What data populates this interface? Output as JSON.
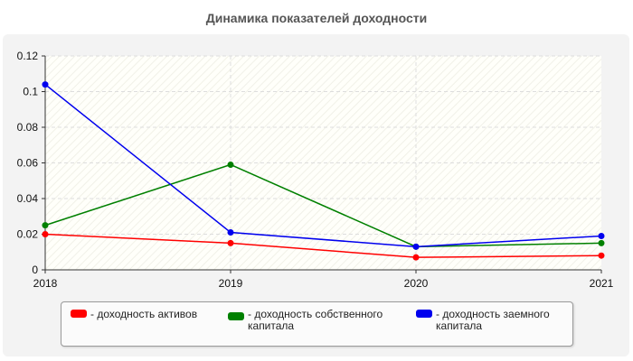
{
  "chart_data": {
    "type": "line",
    "title": "Динамика показателей доходности",
    "x": [
      "2018",
      "2019",
      "2020",
      "2021"
    ],
    "yticks": [
      "0",
      "0.02",
      "0.04",
      "0.06",
      "0.08",
      "0.1",
      "0.12"
    ],
    "ylim": [
      0,
      0.12
    ],
    "grid": true,
    "legend_position": "bottom",
    "series": [
      {
        "name": "- доходность активов",
        "color": "#ff0000",
        "values": [
          0.02,
          0.015,
          0.007,
          0.008
        ]
      },
      {
        "name": "- доходность собственного капитала",
        "color": "#008000",
        "values": [
          0.025,
          0.059,
          0.013,
          0.015
        ]
      },
      {
        "name": "- доходность заемного капитала",
        "color": "#0000ee",
        "values": [
          0.104,
          0.021,
          0.013,
          0.019
        ]
      }
    ]
  }
}
